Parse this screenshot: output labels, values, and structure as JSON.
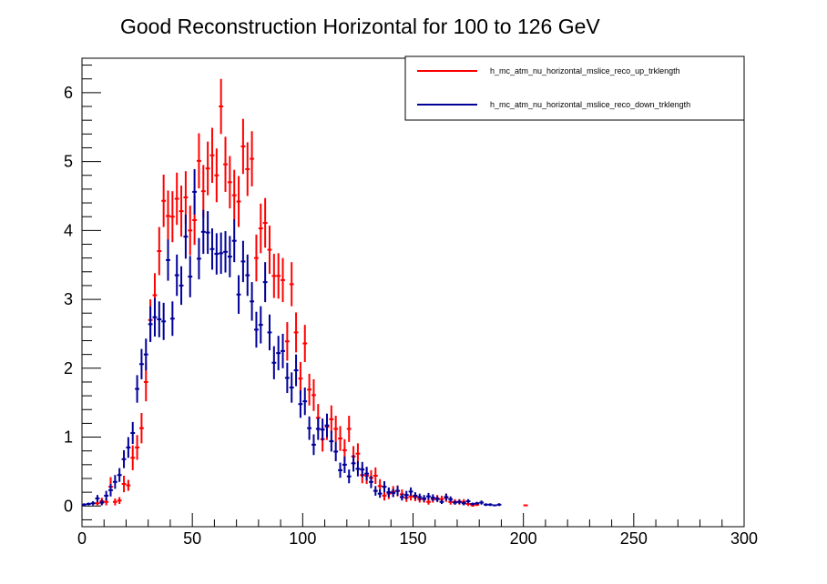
{
  "colors": {
    "up": "#ff0000",
    "down": "#000099",
    "frame": "#000000",
    "background": "#ffffff"
  },
  "chart_data": {
    "type": "scatter",
    "title": "Good Reconstruction Horizontal for 100 to 126 GeV",
    "xlabel": "",
    "ylabel": "",
    "xlim": [
      0,
      300
    ],
    "ylim": [
      -0.3,
      6.5
    ],
    "bin_width": 2,
    "x_ticks": [
      0,
      50,
      100,
      150,
      200,
      250,
      300
    ],
    "x_tick_labels": [
      "0",
      "50",
      "100",
      "150",
      "200",
      "250",
      "300"
    ],
    "y_ticks": [
      0,
      1,
      2,
      3,
      4,
      5,
      6
    ],
    "y_tick_labels": [
      "0",
      "1",
      "2",
      "3",
      "4",
      "5",
      "6"
    ],
    "grid": false,
    "legend_position": "top-right",
    "error_bars": true,
    "series": [
      {
        "name": "h_mc_atm_nu_horizontal_mslice_reco_up_trklength",
        "color": "#ff0000",
        "x": [
          1,
          3,
          5,
          7,
          9,
          11,
          13,
          15,
          17,
          19,
          21,
          23,
          25,
          27,
          29,
          31,
          33,
          35,
          37,
          39,
          41,
          43,
          45,
          47,
          49,
          51,
          53,
          55,
          57,
          59,
          61,
          63,
          65,
          67,
          69,
          71,
          73,
          75,
          77,
          79,
          81,
          83,
          85,
          87,
          89,
          91,
          93,
          95,
          97,
          99,
          101,
          103,
          105,
          107,
          109,
          111,
          113,
          115,
          117,
          119,
          121,
          123,
          125,
          127,
          129,
          131,
          133,
          135,
          137,
          139,
          141,
          143,
          145,
          147,
          149,
          151,
          153,
          155,
          157,
          159,
          161,
          163,
          165,
          167,
          169,
          171,
          173,
          175,
          177,
          179,
          181,
          183,
          185,
          187,
          189,
          191,
          193,
          195,
          197,
          199,
          201
        ],
        "y": [
          0,
          0,
          0,
          0.04,
          0.07,
          0.06,
          0.28,
          0.06,
          0.08,
          0.32,
          0.3,
          0.7,
          0.85,
          1.13,
          1.8,
          2.7,
          3.06,
          3.7,
          4.43,
          4.21,
          4.2,
          4.46,
          4.28,
          4.48,
          4.0,
          4.15,
          5.01,
          4.57,
          4.9,
          5.09,
          4.8,
          5.8,
          4.96,
          4.7,
          4.51,
          4.42,
          5.22,
          4.89,
          5.04,
          3.6,
          4.03,
          4.11,
          3.72,
          3.34,
          3.34,
          3.28,
          2.39,
          3.22,
          2.52,
          1.85,
          2.36,
          1.69,
          1.61,
          1.28,
          0.97,
          1.15,
          1.26,
          1.12,
          0.98,
          0.81,
          1.12,
          0.72,
          0.76,
          0.45,
          0.44,
          0.41,
          0.44,
          0.29,
          0.15,
          0.18,
          0.21,
          0.22,
          0.17,
          0.12,
          0.14,
          0.13,
          0.1,
          0.1,
          0.06,
          0.1,
          0.11,
          0.1,
          0.12,
          0.06,
          0.06,
          0.06,
          0.06,
          0.03,
          0.01,
          0.02,
          0,
          0,
          0,
          0,
          0,
          0,
          0,
          0,
          0,
          0,
          0.01
        ],
        "yerr": [
          0,
          0,
          0,
          0.03,
          0.05,
          0.05,
          0.14,
          0.05,
          0.05,
          0.12,
          0.08,
          0.18,
          0.18,
          0.22,
          0.28,
          0.3,
          0.32,
          0.35,
          0.38,
          0.37,
          0.37,
          0.38,
          0.37,
          0.38,
          0.36,
          0.36,
          0.4,
          0.38,
          0.39,
          0.4,
          0.39,
          0.4,
          0.4,
          0.38,
          0.37,
          0.37,
          0.4,
          0.39,
          0.4,
          0.34,
          0.36,
          0.36,
          0.35,
          0.32,
          0.33,
          0.32,
          0.28,
          0.32,
          0.29,
          0.24,
          0.27,
          0.23,
          0.23,
          0.2,
          0.18,
          0.19,
          0.2,
          0.19,
          0.18,
          0.16,
          0.19,
          0.15,
          0.15,
          0.12,
          0.12,
          0.11,
          0.12,
          0.1,
          0.07,
          0.08,
          0.08,
          0.08,
          0.07,
          0.06,
          0.06,
          0.06,
          0.05,
          0.05,
          0.04,
          0.05,
          0.05,
          0.05,
          0.06,
          0.04,
          0.04,
          0.04,
          0.04,
          0.03,
          0.02,
          0.02,
          0,
          0,
          0,
          0,
          0,
          0,
          0,
          0,
          0,
          0,
          0.01
        ]
      },
      {
        "name": "h_mc_atm_nu_horizontal_mslice_reco_down_trklength",
        "color": "#000099",
        "x": [
          1,
          3,
          5,
          7,
          9,
          11,
          13,
          15,
          17,
          19,
          21,
          23,
          25,
          27,
          29,
          31,
          33,
          35,
          37,
          39,
          41,
          43,
          45,
          47,
          49,
          51,
          53,
          55,
          57,
          59,
          61,
          63,
          65,
          67,
          69,
          71,
          73,
          75,
          77,
          79,
          81,
          83,
          85,
          87,
          89,
          91,
          93,
          95,
          97,
          99,
          101,
          103,
          105,
          107,
          109,
          111,
          113,
          115,
          117,
          119,
          121,
          123,
          125,
          127,
          129,
          131,
          133,
          135,
          137,
          139,
          141,
          143,
          145,
          147,
          149,
          151,
          153,
          155,
          157,
          159,
          161,
          163,
          165,
          167,
          169,
          171,
          173,
          175,
          177,
          179,
          181,
          183,
          185,
          187,
          189,
          191,
          193,
          195,
          197,
          199,
          201
        ],
        "y": [
          0.02,
          0.03,
          0.04,
          0.11,
          0.05,
          0.15,
          0.23,
          0.35,
          0.45,
          0.68,
          0.85,
          1.06,
          1.7,
          2.06,
          2.2,
          2.64,
          2.74,
          2.71,
          2.68,
          3.57,
          2.72,
          3.35,
          3.2,
          3.91,
          3.33,
          4.56,
          3.59,
          3.98,
          3.97,
          3.73,
          3.66,
          3.67,
          3.69,
          3.62,
          3.85,
          3.07,
          3.55,
          3.35,
          2.97,
          2.56,
          2.63,
          3.25,
          2.52,
          2.08,
          2.22,
          2.25,
          1.86,
          1.72,
          1.97,
          1.48,
          1.52,
          1.13,
          0.89,
          1.12,
          1.11,
          1.17,
          0.94,
          0.79,
          0.52,
          0.6,
          0.43,
          0.62,
          0.54,
          0.53,
          0.47,
          0.35,
          0.22,
          0.18,
          0.28,
          0.2,
          0.19,
          0.22,
          0.13,
          0.16,
          0.21,
          0.15,
          0.13,
          0.11,
          0.14,
          0.12,
          0.1,
          0.06,
          0.13,
          0.1,
          0.05,
          0.06,
          0.04,
          0.07,
          0.03,
          0.04,
          0.05,
          0.02,
          0.02,
          0.01,
          0.02,
          0,
          0,
          0,
          0,
          0,
          0
        ],
        "yerr": [
          0.02,
          0.02,
          0.03,
          0.05,
          0.04,
          0.07,
          0.09,
          0.1,
          0.1,
          0.13,
          0.15,
          0.16,
          0.2,
          0.22,
          0.23,
          0.26,
          0.28,
          0.26,
          0.27,
          0.3,
          0.25,
          0.3,
          0.28,
          0.32,
          0.3,
          0.33,
          0.3,
          0.32,
          0.31,
          0.3,
          0.3,
          0.3,
          0.3,
          0.3,
          0.31,
          0.28,
          0.3,
          0.3,
          0.28,
          0.26,
          0.27,
          0.29,
          0.26,
          0.24,
          0.25,
          0.25,
          0.22,
          0.22,
          0.23,
          0.2,
          0.2,
          0.17,
          0.15,
          0.16,
          0.16,
          0.17,
          0.15,
          0.14,
          0.11,
          0.12,
          0.1,
          0.12,
          0.11,
          0.11,
          0.1,
          0.09,
          0.07,
          0.06,
          0.08,
          0.07,
          0.06,
          0.07,
          0.05,
          0.06,
          0.06,
          0.05,
          0.05,
          0.05,
          0.05,
          0.05,
          0.04,
          0.03,
          0.05,
          0.04,
          0.03,
          0.03,
          0.03,
          0.03,
          0.02,
          0.02,
          0.03,
          0.02,
          0.02,
          0.01,
          0.02,
          0,
          0,
          0,
          0,
          0,
          0
        ]
      }
    ]
  }
}
